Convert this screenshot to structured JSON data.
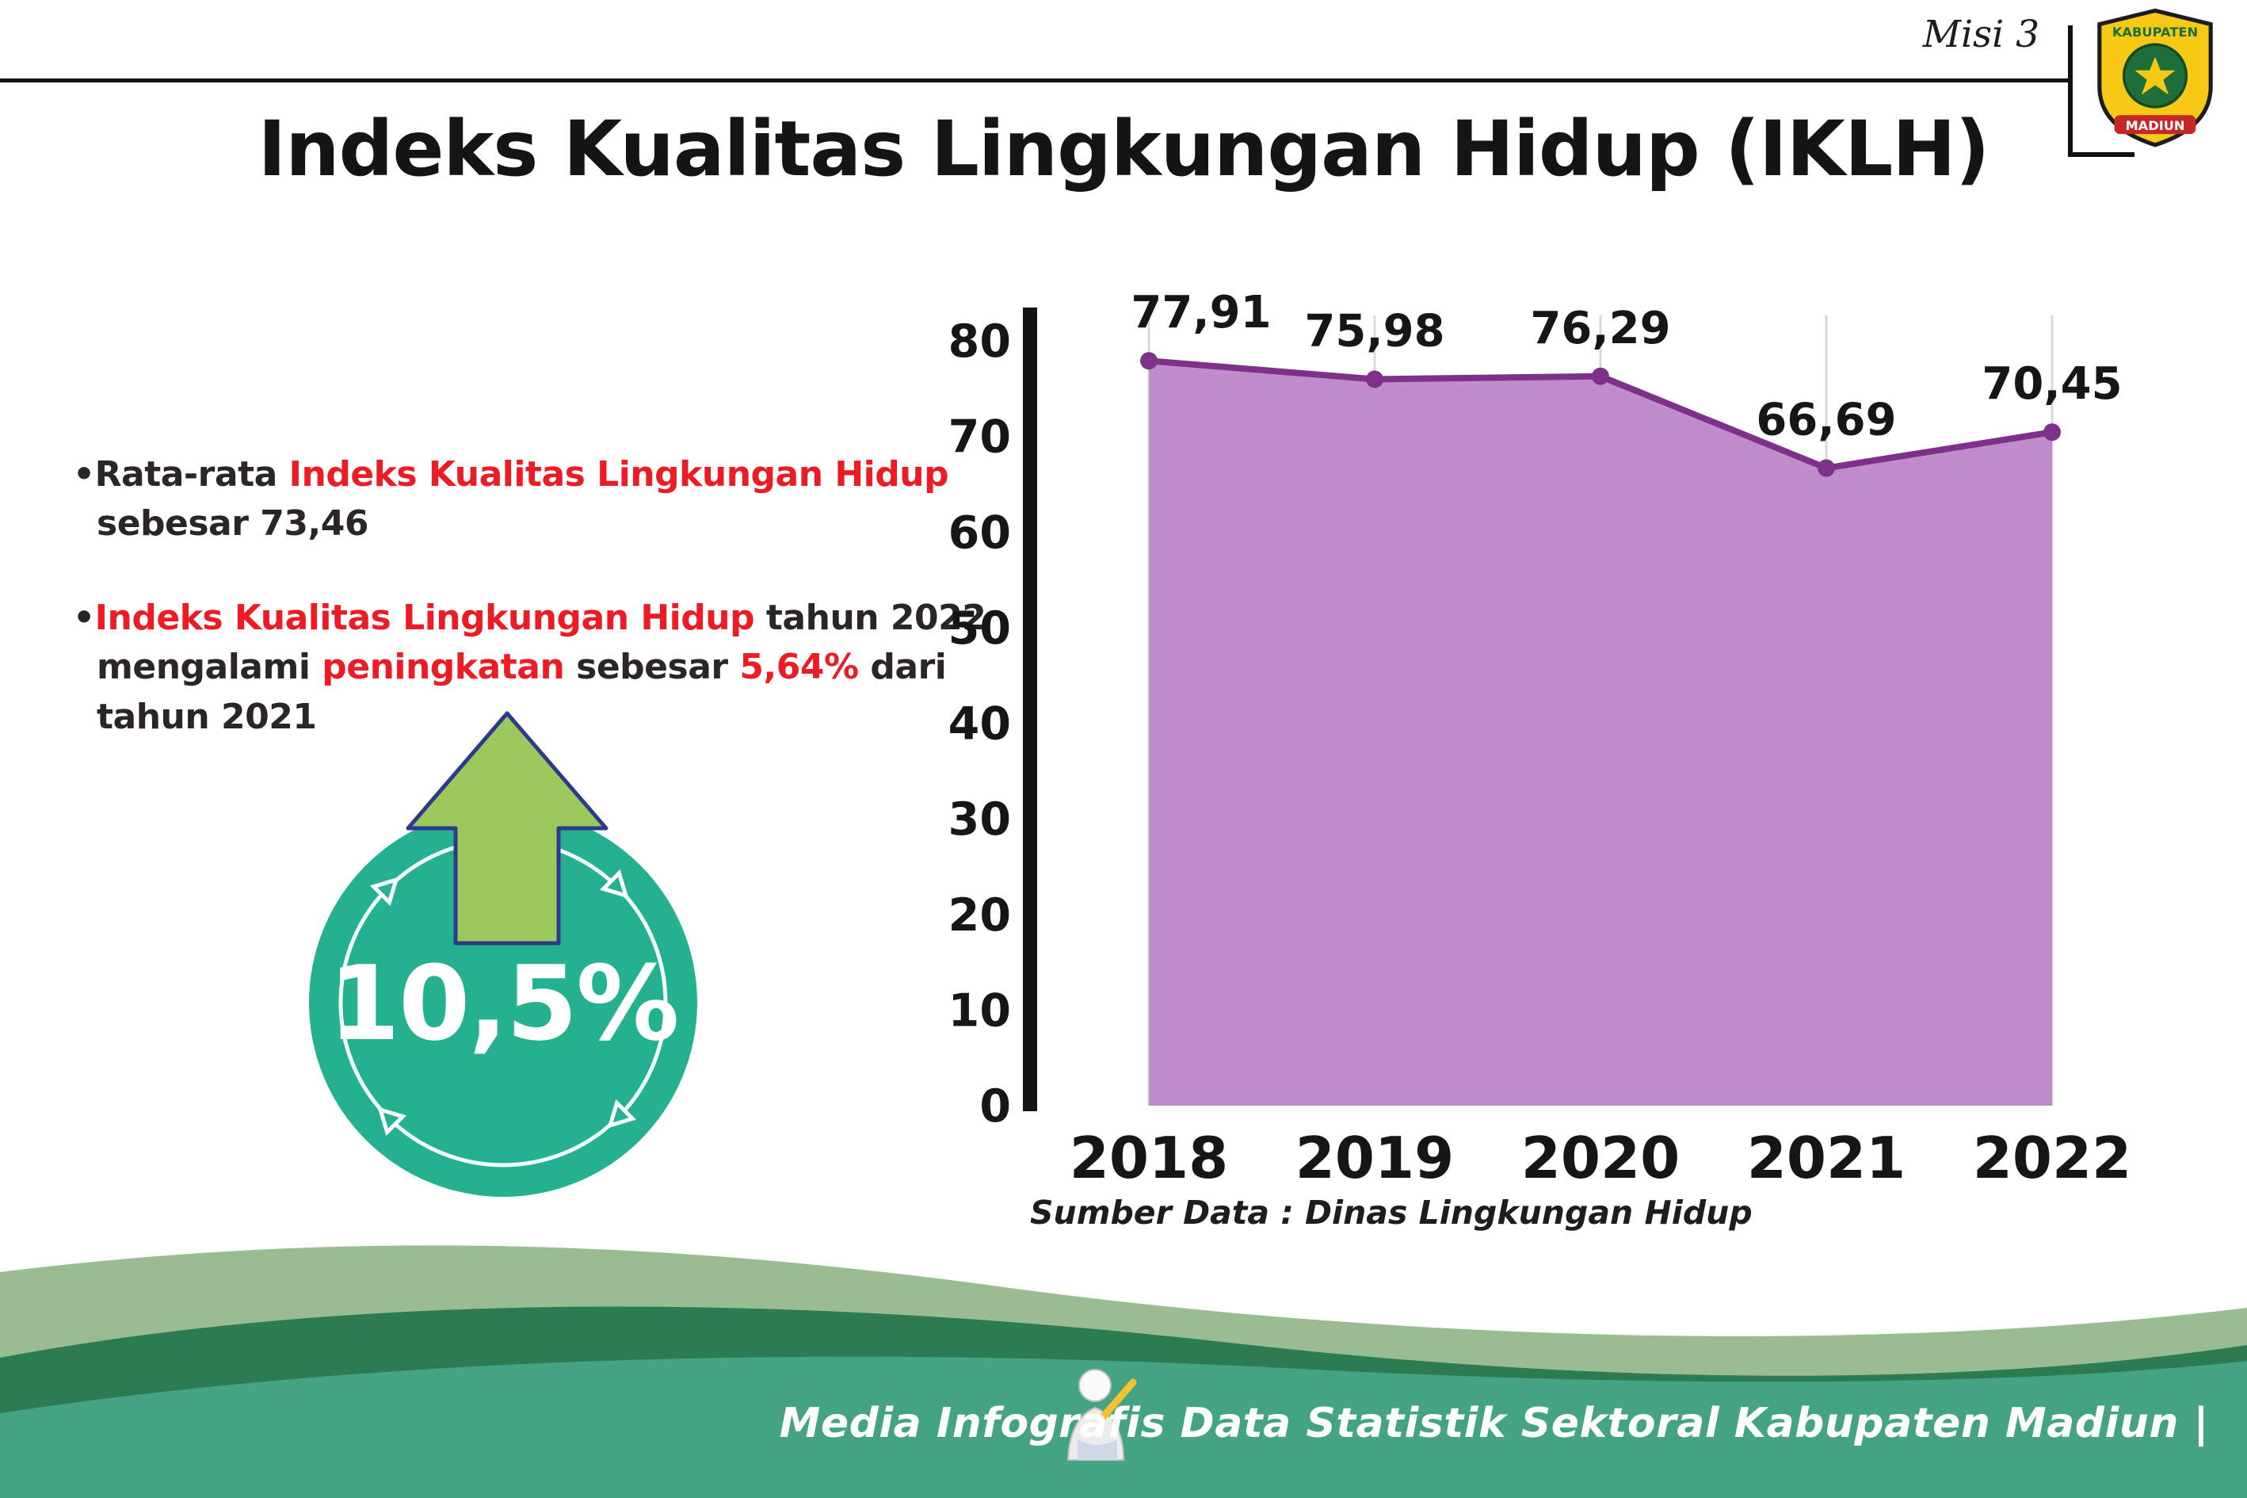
{
  "header": {
    "misi": "Misi 3",
    "title": "Indeks Kualitas Lingkungan Hidup (IKLH)",
    "logo": {
      "top_text": "KABUPATEN",
      "bottom_text": "MADIUN"
    }
  },
  "bullets": [
    {
      "marker": "•",
      "segments": [
        {
          "text": "Rata-rata ",
          "color": "dark"
        },
        {
          "text": "Indeks Kualitas Lingkungan Hidup",
          "color": "red"
        },
        {
          "text": " sebesar 73,46",
          "color": "dark"
        }
      ]
    },
    {
      "marker": "•",
      "segments": [
        {
          "text": "Indeks Kualitas Lingkungan Hidup",
          "color": "red"
        },
        {
          "text": " tahun 2022 mengalami ",
          "color": "dark"
        },
        {
          "text": "peningkatan",
          "color": "red"
        },
        {
          "text": " sebesar ",
          "color": "dark"
        },
        {
          "text": "5,64%",
          "color": "red"
        },
        {
          "text": " dari tahun 2021",
          "color": "dark"
        }
      ]
    }
  ],
  "badge": {
    "value": "10,5%"
  },
  "chart_data": {
    "type": "area",
    "title": "Indeks Kualitas Lingkungan Hidup (IKLH)",
    "categories": [
      "2018",
      "2019",
      "2020",
      "2021",
      "2022"
    ],
    "values": [
      77.91,
      75.98,
      76.29,
      66.69,
      70.45
    ],
    "point_labels": [
      "77,91",
      "75,98",
      "76,29",
      "66,69",
      "70,45"
    ],
    "ylim": [
      0,
      80
    ],
    "yticks": [
      0,
      10,
      20,
      30,
      40,
      50,
      60,
      70,
      80
    ],
    "grid": "vertical",
    "legend": "none",
    "line_color": "#7d3189",
    "fill_color": "#c08cc9"
  },
  "source_note": "Sumber Data : Dinas Lingkungan Hidup",
  "footer": {
    "text": "Media Infografis Data Statistik Sektoral Kabupaten Madiun |"
  },
  "colors": {
    "red": "#ed1c24",
    "teal_circle": "#24b190",
    "arrow_green": "#9cc95c",
    "arrow_outline": "#2d3a8c",
    "line_purple": "#7d3189",
    "fill_purple": "#c08cc9",
    "footer_sage": "#9abc92",
    "footer_dark_green": "#2c7b52",
    "footer_teal": "#43a383"
  }
}
